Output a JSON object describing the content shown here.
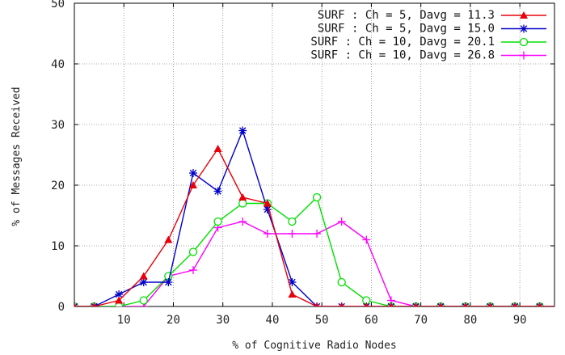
{
  "chart_data": {
    "type": "line",
    "title": "",
    "xlabel": "% of Cognitive Radio Nodes",
    "ylabel": "% of Messages Received",
    "xlim": [
      0,
      97
    ],
    "ylim": [
      0,
      50
    ],
    "x_ticks": [
      10,
      20,
      30,
      40,
      50,
      60,
      70,
      80,
      90
    ],
    "x_tick_labels": [
      "10",
      "20",
      "30",
      "40",
      "50",
      "60",
      "70",
      "80",
      "90"
    ],
    "y_ticks": [
      0,
      10,
      20,
      30,
      40,
      50
    ],
    "y_tick_labels": [
      "0",
      "10",
      "20",
      "30",
      "40",
      "50"
    ],
    "grid": true,
    "legend_position": "top-right",
    "x": [
      0,
      4,
      9,
      14,
      19,
      24,
      29,
      34,
      39,
      44,
      49,
      54,
      59,
      64,
      69,
      74,
      79,
      84,
      89,
      94,
      99
    ],
    "series": [
      {
        "name": "SURF : Ch = 5, Davg = 11.3",
        "color": "#e8000b",
        "marker": "triangle",
        "values": [
          0,
          0,
          1,
          5,
          11,
          20,
          26,
          18,
          17,
          2,
          0,
          0,
          0,
          0,
          0,
          0,
          0,
          0,
          0,
          0,
          0
        ]
      },
      {
        "name": "SURF : Ch = 5, Davg = 15.0",
        "color": "#0000c8",
        "marker": "asterisk",
        "values": [
          0,
          0,
          2,
          4,
          4,
          22,
          19,
          29,
          16,
          4,
          0,
          0,
          0,
          0,
          0,
          0,
          0,
          0,
          0,
          0,
          0
        ]
      },
      {
        "name": "SURF : Ch = 10, Davg = 20.1",
        "color": "#00e000",
        "marker": "circle",
        "values": [
          0,
          0,
          0,
          1,
          5,
          9,
          14,
          17,
          17,
          14,
          18,
          4,
          1,
          0,
          0,
          0,
          0,
          0,
          0,
          0,
          0
        ]
      },
      {
        "name": "SURF : Ch = 10, Davg = 26.8",
        "color": "#ff00ff",
        "marker": "plus",
        "values": [
          0,
          0,
          0,
          0,
          5,
          6,
          13,
          14,
          12,
          12,
          12,
          14,
          11,
          1,
          0,
          0,
          0,
          0,
          0,
          0,
          0
        ]
      }
    ]
  }
}
